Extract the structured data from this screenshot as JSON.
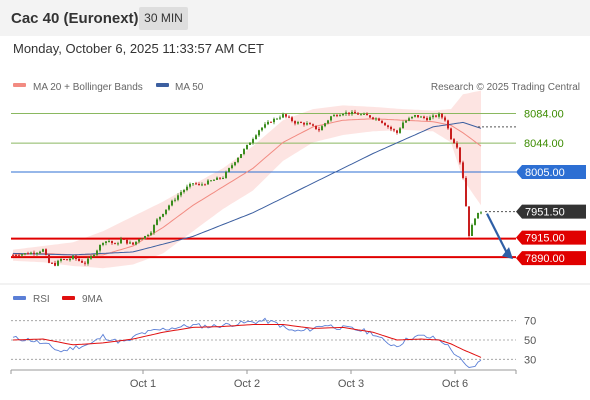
{
  "header": {
    "title": "Cac 40 (Euronext)",
    "timeframe": "30 MIN"
  },
  "datetime": "Monday, October 6, 2025 11:33:57 AM CET",
  "colors": {
    "bull": "#3b8c1e",
    "bear": "#c81e1e",
    "ma20": "#f28b82",
    "band": "#fde1df",
    "ma50": "#3c5fa0",
    "rsi": "#5b7fd6",
    "rsi_ma": "#e01010",
    "support": "#e00000",
    "pivot": "#2d6fd3",
    "resistance": "#8ab860",
    "last": "#333333"
  },
  "legend": {
    "ma20": "MA 20 + Bollinger Bands",
    "ma50": "MA 50",
    "credit": "Research © 2025 Trading Central"
  },
  "rsi_legend": {
    "rsi": "RSI",
    "ma": "9MA"
  },
  "chart_data": [
    {
      "type": "candlestick",
      "x_labels": [
        "Oct 1",
        "Oct 2",
        "Oct 3",
        "Oct 6"
      ],
      "ylim": [
        7855,
        8105
      ],
      "levels": [
        {
          "label": "8084.00",
          "value": 8084,
          "kind": "resistance"
        },
        {
          "label": "8044.00",
          "value": 8044,
          "kind": "resistance"
        },
        {
          "label": "8005.00",
          "value": 8005,
          "kind": "pivot"
        },
        {
          "label": "7951.50",
          "value": 7951.5,
          "kind": "last"
        },
        {
          "label": "7915.00",
          "value": 7915,
          "kind": "support"
        },
        {
          "label": "7890.00",
          "value": 7890,
          "kind": "support"
        }
      ],
      "price_keyframes": [
        [
          0,
          7893
        ],
        [
          5,
          7895
        ],
        [
          8,
          7897
        ],
        [
          10,
          7900
        ],
        [
          12,
          7882
        ],
        [
          14,
          7880
        ],
        [
          16,
          7887
        ],
        [
          18,
          7886
        ],
        [
          20,
          7890
        ],
        [
          22,
          7885
        ],
        [
          24,
          7882
        ],
        [
          26,
          7890
        ],
        [
          28,
          7900
        ],
        [
          30,
          7911
        ],
        [
          32,
          7912
        ],
        [
          34,
          7906
        ],
        [
          36,
          7914
        ],
        [
          38,
          7910
        ],
        [
          40,
          7907
        ],
        [
          42,
          7915
        ],
        [
          44,
          7918
        ],
        [
          46,
          7925
        ],
        [
          48,
          7940
        ],
        [
          52,
          7960
        ],
        [
          56,
          7978
        ],
        [
          60,
          7990
        ],
        [
          62,
          7987
        ],
        [
          66,
          7993
        ],
        [
          70,
          7998
        ],
        [
          74,
          8020
        ],
        [
          78,
          8040
        ],
        [
          82,
          8062
        ],
        [
          86,
          8074
        ],
        [
          90,
          8082
        ],
        [
          94,
          8072
        ],
        [
          98,
          8070
        ],
        [
          102,
          8062
        ],
        [
          106,
          8080
        ],
        [
          110,
          8085
        ],
        [
          114,
          8084
        ],
        [
          118,
          8081
        ],
        [
          122,
          8076
        ],
        [
          126,
          8063
        ],
        [
          128,
          8058
        ],
        [
          130,
          8072
        ],
        [
          134,
          8081
        ],
        [
          138,
          8077
        ],
        [
          142,
          8082
        ],
        [
          144,
          8076
        ],
        [
          146,
          8051
        ],
        [
          148,
          8040
        ],
        [
          150,
          7998
        ],
        [
          152,
          7920
        ],
        [
          154,
          7944
        ],
        [
          156,
          7951.5
        ]
      ],
      "ma20_keyframes": [
        [
          0,
          7893
        ],
        [
          10,
          7895
        ],
        [
          20,
          7893
        ],
        [
          30,
          7893
        ],
        [
          40,
          7905
        ],
        [
          50,
          7930
        ],
        [
          60,
          7960
        ],
        [
          70,
          7985
        ],
        [
          80,
          8010
        ],
        [
          90,
          8045
        ],
        [
          100,
          8066
        ],
        [
          110,
          8075
        ],
        [
          120,
          8077
        ],
        [
          130,
          8075
        ],
        [
          140,
          8073
        ],
        [
          146,
          8068
        ],
        [
          150,
          8058
        ],
        [
          156,
          8040
        ]
      ],
      "ma50_keyframes": [
        [
          0,
          7895
        ],
        [
          20,
          7893
        ],
        [
          40,
          7897
        ],
        [
          60,
          7918
        ],
        [
          80,
          7950
        ],
        [
          100,
          7990
        ],
        [
          120,
          8030
        ],
        [
          130,
          8048
        ],
        [
          140,
          8066
        ],
        [
          150,
          8072
        ],
        [
          156,
          8064
        ]
      ],
      "band_upper_keyframes": [
        [
          0,
          7900
        ],
        [
          10,
          7905
        ],
        [
          20,
          7910
        ],
        [
          30,
          7925
        ],
        [
          40,
          7945
        ],
        [
          50,
          7965
        ],
        [
          60,
          7988
        ],
        [
          70,
          8010
        ],
        [
          80,
          8040
        ],
        [
          90,
          8075
        ],
        [
          100,
          8090
        ],
        [
          110,
          8095
        ],
        [
          120,
          8093
        ],
        [
          130,
          8090
        ],
        [
          140,
          8088
        ],
        [
          146,
          8090
        ],
        [
          150,
          8110
        ],
        [
          156,
          8115
        ]
      ],
      "band_lower_keyframes": [
        [
          0,
          7885
        ],
        [
          10,
          7883
        ],
        [
          20,
          7878
        ],
        [
          30,
          7875
        ],
        [
          40,
          7880
        ],
        [
          50,
          7895
        ],
        [
          60,
          7925
        ],
        [
          70,
          7955
        ],
        [
          80,
          7980
        ],
        [
          90,
          8020
        ],
        [
          100,
          8045
        ],
        [
          110,
          8055
        ],
        [
          120,
          8060
        ],
        [
          130,
          8062
        ],
        [
          140,
          8060
        ],
        [
          146,
          8045
        ],
        [
          150,
          7995
        ],
        [
          156,
          7960
        ]
      ],
      "projection": {
        "from": 7951.5,
        "to": 7890
      }
    },
    {
      "type": "line",
      "title": "RSI",
      "ylim": [
        20,
        80
      ],
      "y_ticks": [
        70,
        50,
        30
      ],
      "rsi_keyframes": [
        [
          0,
          52
        ],
        [
          6,
          50
        ],
        [
          12,
          44
        ],
        [
          16,
          38
        ],
        [
          20,
          42
        ],
        [
          26,
          46
        ],
        [
          30,
          54
        ],
        [
          34,
          49
        ],
        [
          38,
          48
        ],
        [
          42,
          56
        ],
        [
          48,
          60
        ],
        [
          54,
          63
        ],
        [
          60,
          65
        ],
        [
          66,
          64
        ],
        [
          72,
          66
        ],
        [
          78,
          68
        ],
        [
          84,
          70
        ],
        [
          88,
          67
        ],
        [
          92,
          60
        ],
        [
          96,
          59
        ],
        [
          100,
          62
        ],
        [
          104,
          66
        ],
        [
          108,
          63
        ],
        [
          112,
          62
        ],
        [
          116,
          60
        ],
        [
          120,
          57
        ],
        [
          124,
          48
        ],
        [
          128,
          44
        ],
        [
          132,
          52
        ],
        [
          136,
          54
        ],
        [
          140,
          52
        ],
        [
          144,
          47
        ],
        [
          146,
          40
        ],
        [
          148,
          34
        ],
        [
          150,
          26
        ],
        [
          152,
          20
        ],
        [
          154,
          24
        ],
        [
          156,
          28
        ]
      ],
      "ma_keyframes": [
        [
          0,
          50
        ],
        [
          10,
          51
        ],
        [
          20,
          45
        ],
        [
          30,
          47
        ],
        [
          40,
          51
        ],
        [
          50,
          58
        ],
        [
          60,
          63
        ],
        [
          70,
          64
        ],
        [
          80,
          66
        ],
        [
          90,
          66
        ],
        [
          100,
          62
        ],
        [
          110,
          63
        ],
        [
          120,
          58
        ],
        [
          128,
          50
        ],
        [
          136,
          51
        ],
        [
          142,
          50
        ],
        [
          146,
          46
        ],
        [
          150,
          40
        ],
        [
          156,
          32
        ]
      ]
    }
  ]
}
